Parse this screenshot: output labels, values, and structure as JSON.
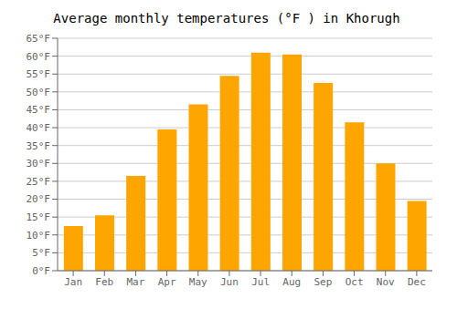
{
  "chart_data": {
    "type": "bar",
    "title": "Average monthly temperatures (°F ) in Khorugh",
    "categories": [
      "Jan",
      "Feb",
      "Mar",
      "Apr",
      "May",
      "Jun",
      "Jul",
      "Aug",
      "Sep",
      "Oct",
      "Nov",
      "Dec"
    ],
    "values": [
      12.5,
      15.5,
      26.5,
      39.5,
      46.5,
      54.5,
      61.0,
      60.5,
      52.5,
      41.5,
      30.0,
      19.5
    ],
    "color": "#FFA500",
    "ylim": [
      0,
      65
    ],
    "yticks": [
      {
        "value": 0,
        "label": "0°F"
      },
      {
        "value": 5,
        "label": "5°F"
      },
      {
        "value": 10,
        "label": "10°F"
      },
      {
        "value": 15,
        "label": "15°F"
      },
      {
        "value": 20,
        "label": "20°F"
      },
      {
        "value": 25,
        "label": "25°F"
      },
      {
        "value": 30,
        "label": "30°F"
      },
      {
        "value": 35,
        "label": "35°F"
      },
      {
        "value": 40,
        "label": "40°F"
      },
      {
        "value": 45,
        "label": "45°F"
      },
      {
        "value": 50,
        "label": "50°F"
      },
      {
        "value": 55,
        "label": "55°F"
      },
      {
        "value": 60,
        "label": "60°F"
      },
      {
        "value": 65,
        "label": "65°F"
      }
    ],
    "grid": true
  }
}
